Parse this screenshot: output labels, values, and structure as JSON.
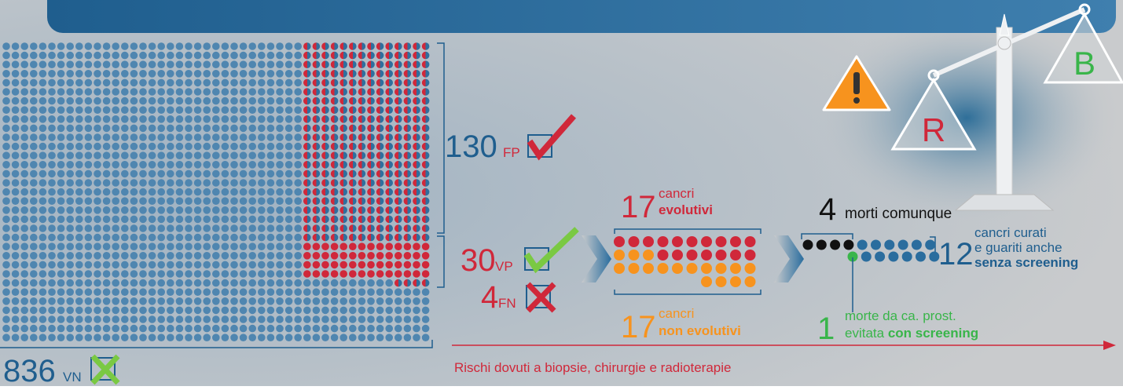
{
  "groups": {
    "fp": {
      "count": 130,
      "code": "FP"
    },
    "vp": {
      "count": 30,
      "code": "VP"
    },
    "fn": {
      "count": 4,
      "code": "FN"
    },
    "vn": {
      "count": 836,
      "code": "VN"
    }
  },
  "evolutive": {
    "count": 17,
    "line1": "cancri",
    "line2": "evolutivi"
  },
  "non_evolutive": {
    "count": 17,
    "line1": "cancri",
    "line2": "non evolutivi"
  },
  "deaths_anyway": {
    "count": 4,
    "label": "morti comunque"
  },
  "cured": {
    "count": 12,
    "line1": "cancri curati",
    "line2": "e guariti anche",
    "line3": "senza screening"
  },
  "avoided": {
    "count": 1,
    "line1": "morte da ca. prost.",
    "line2a": "evitata",
    "line2b": "con screening"
  },
  "risk_arrow": "Rischi dovuti a biopsie, chirurgie e radioterapie",
  "scale": {
    "left": "R",
    "right": "B"
  }
}
